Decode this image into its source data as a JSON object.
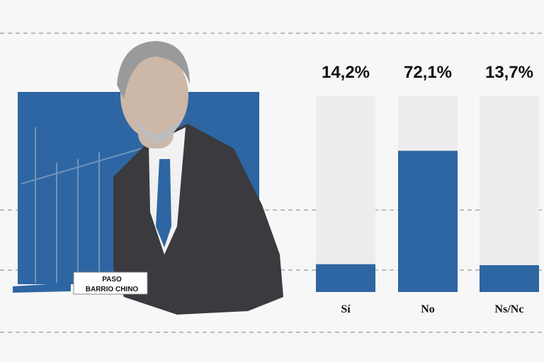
{
  "chart_data": {
    "type": "bar",
    "categories": [
      "Sí",
      "No",
      "Ns/Nc"
    ],
    "values": [
      14.2,
      72.1,
      13.7
    ],
    "value_labels": [
      "14,2%",
      "72,1%",
      "13,7%"
    ],
    "color": "#2e66a3",
    "track_color": "#ededed",
    "ylim": [
      0,
      100
    ]
  },
  "image": {
    "sign": [
      "PASO",
      "BARRIO CHINO"
    ]
  }
}
